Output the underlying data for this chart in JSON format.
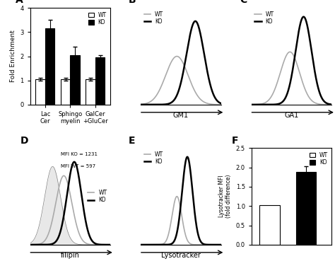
{
  "panel_A": {
    "categories": [
      "Lac\nCer",
      "Sphingo\nmyelin",
      "GalCer\n+GluCer"
    ],
    "wt_values": [
      1.05,
      1.05,
      1.05
    ],
    "ko_values": [
      3.15,
      2.05,
      1.95
    ],
    "ko_errors": [
      0.35,
      0.35,
      0.1
    ],
    "wt_errors": [
      0.05,
      0.05,
      0.05
    ],
    "ylabel": "Fold Enrichment",
    "ylim": [
      0,
      4
    ],
    "yticks": [
      0,
      1,
      2,
      3,
      4
    ]
  },
  "panel_F": {
    "categories": [
      "WT",
      "KO"
    ],
    "values": [
      1.02,
      1.88
    ],
    "errors": [
      0.0,
      0.15
    ],
    "ylabel": "Lysotracker MFI\n(fold difference)",
    "ylim": [
      0,
      2.5
    ],
    "yticks": [
      0,
      0.5,
      1,
      1.5,
      2,
      2.5
    ]
  },
  "colors": {
    "wt_bar": "#ffffff",
    "ko_bar": "#000000",
    "wt_line": "#aaaaaa",
    "ko_line": "#000000",
    "wt_fill": "#cccccc",
    "edge": "#000000"
  }
}
